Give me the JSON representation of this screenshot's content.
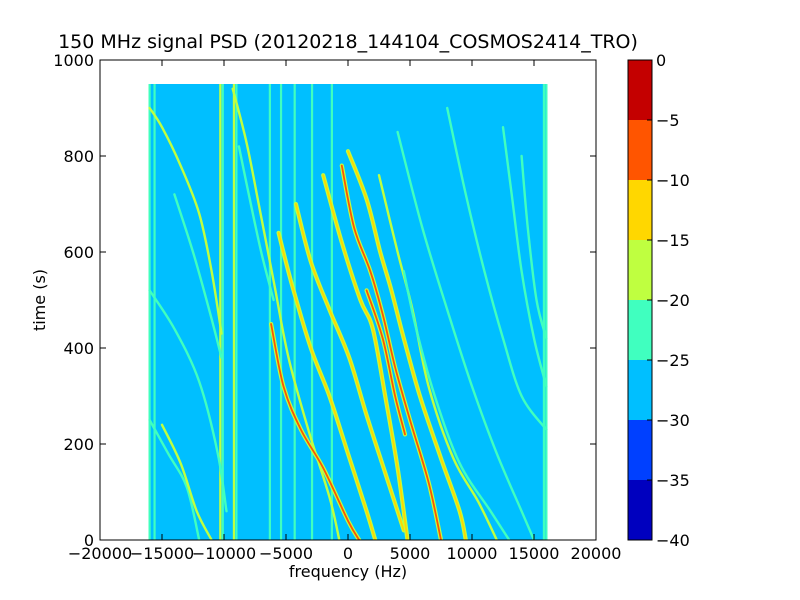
{
  "chart_data": {
    "type": "heatmap",
    "title": "150 MHz signal PSD (20120218_144104_COSMOS2414_TRO)",
    "xlabel": "frequency (Hz)",
    "ylabel": "time (s)",
    "xlim": [
      -20000,
      20000
    ],
    "ylim": [
      0,
      1000
    ],
    "xticks": [
      "−20000",
      "−15000",
      "−10000",
      "−5000",
      "0",
      "5000",
      "10000",
      "15000",
      "20000"
    ],
    "yticks": [
      "0",
      "200",
      "400",
      "600",
      "800",
      "1000"
    ],
    "data_extent": {
      "x": [
        -16000,
        16000
      ],
      "y": [
        0,
        950
      ]
    },
    "background_level": -27.5,
    "colorbar": {
      "min": -40,
      "max": 0,
      "ticks": [
        "0",
        "−5",
        "−10",
        "−15",
        "−20",
        "−25",
        "−30",
        "−35",
        "−40"
      ],
      "levels": [
        {
          "from": -40,
          "to": -35,
          "color": "#0000bf"
        },
        {
          "from": -35,
          "to": -30,
          "color": "#0040ff"
        },
        {
          "from": -30,
          "to": -25,
          "color": "#00bfff"
        },
        {
          "from": -25,
          "to": -20,
          "color": "#40ffbf"
        },
        {
          "from": -20,
          "to": -15,
          "color": "#bfff40"
        },
        {
          "from": -15,
          "to": -10,
          "color": "#ffd700"
        },
        {
          "from": -10,
          "to": -5,
          "color": "#ff5500"
        },
        {
          "from": -5,
          "to": 0,
          "color": "#c40000"
        }
      ]
    },
    "vertical_lines": [
      {
        "x": -16000,
        "level": -22
      },
      {
        "x": -15600,
        "level": -22
      },
      {
        "x": -10300,
        "level": -18
      },
      {
        "x": -10100,
        "level": -22
      },
      {
        "x": -9200,
        "level": -18
      },
      {
        "x": -9000,
        "level": -22
      },
      {
        "x": -6300,
        "level": -22
      },
      {
        "x": -5400,
        "level": -22
      },
      {
        "x": -4300,
        "level": -22
      },
      {
        "x": -2900,
        "level": -22
      },
      {
        "x": -1300,
        "level": -22
      },
      {
        "x": 15800,
        "level": -22
      },
      {
        "x": 16000,
        "level": -22
      }
    ],
    "tracks": [
      {
        "points": [
          [
            -16000,
            900
          ],
          [
            -15000,
            860
          ],
          [
            -13500,
            780
          ],
          [
            -12000,
            680
          ],
          [
            -11000,
            560
          ],
          [
            -10200,
            430
          ]
        ],
        "level": -18
      },
      {
        "points": [
          [
            -16000,
            520
          ],
          [
            -14000,
            440
          ],
          [
            -12000,
            330
          ],
          [
            -10500,
            180
          ],
          [
            -9800,
            60
          ]
        ],
        "level": -22
      },
      {
        "points": [
          [
            -16000,
            250
          ],
          [
            -14500,
            180
          ],
          [
            -13000,
            110
          ],
          [
            -12000,
            0
          ]
        ],
        "level": -22
      },
      {
        "points": [
          [
            -15000,
            240
          ],
          [
            -13500,
            160
          ],
          [
            -12200,
            60
          ],
          [
            -11000,
            0
          ]
        ],
        "level": -18
      },
      {
        "points": [
          [
            -9300,
            940
          ],
          [
            -8200,
            830
          ],
          [
            -7200,
            700
          ],
          [
            -6000,
            540
          ],
          [
            -4800,
            380
          ],
          [
            -3200,
            230
          ],
          [
            -1500,
            90
          ],
          [
            -700,
            0
          ]
        ],
        "level": -18
      },
      {
        "points": [
          [
            -6200,
            450
          ],
          [
            -5200,
            320
          ],
          [
            -3800,
            230
          ],
          [
            -2000,
            150
          ],
          [
            0,
            40
          ],
          [
            900,
            0
          ]
        ],
        "level": -5
      },
      {
        "points": [
          [
            -5600,
            640
          ],
          [
            -4500,
            530
          ],
          [
            -3000,
            400
          ],
          [
            -1500,
            300
          ],
          [
            0,
            180
          ],
          [
            1500,
            60
          ],
          [
            2200,
            0
          ]
        ],
        "level": -12
      },
      {
        "points": [
          [
            -4200,
            700
          ],
          [
            -3000,
            580
          ],
          [
            -1500,
            480
          ],
          [
            100,
            380
          ],
          [
            1500,
            260
          ],
          [
            3000,
            140
          ],
          [
            4500,
            20
          ]
        ],
        "level": -12
      },
      {
        "points": [
          [
            -2000,
            760
          ],
          [
            -500,
            620
          ],
          [
            1000,
            500
          ],
          [
            2000,
            440
          ],
          [
            3000,
            300
          ],
          [
            4000,
            150
          ],
          [
            4800,
            0
          ]
        ],
        "level": -10
      },
      {
        "points": [
          [
            -500,
            780
          ],
          [
            500,
            650
          ],
          [
            1800,
            560
          ],
          [
            2800,
            470
          ],
          [
            3800,
            360
          ],
          [
            5000,
            250
          ],
          [
            6500,
            120
          ],
          [
            7500,
            0
          ]
        ],
        "level": -5
      },
      {
        "points": [
          [
            1500,
            520
          ],
          [
            2800,
            420
          ],
          [
            3800,
            300
          ],
          [
            4600,
            220
          ]
        ],
        "level": -8
      },
      {
        "points": [
          [
            0,
            810
          ],
          [
            1500,
            710
          ],
          [
            2600,
            600
          ],
          [
            3500,
            520
          ],
          [
            4500,
            420
          ],
          [
            5800,
            300
          ],
          [
            7500,
            170
          ],
          [
            9000,
            60
          ],
          [
            9500,
            0
          ]
        ],
        "level": -12
      },
      {
        "points": [
          [
            2500,
            760
          ],
          [
            4000,
            600
          ],
          [
            5200,
            480
          ],
          [
            6500,
            320
          ],
          [
            8500,
            170
          ],
          [
            10500,
            80
          ],
          [
            12000,
            0
          ]
        ],
        "level": -18
      },
      {
        "points": [
          [
            4500,
            560
          ],
          [
            5500,
            440
          ],
          [
            7000,
            300
          ],
          [
            9000,
            160
          ],
          [
            11500,
            60
          ],
          [
            13000,
            0
          ]
        ],
        "level": -22
      },
      {
        "points": [
          [
            4000,
            850
          ],
          [
            6000,
            650
          ],
          [
            8000,
            480
          ],
          [
            10000,
            320
          ],
          [
            12000,
            180
          ],
          [
            14000,
            60
          ],
          [
            15000,
            0
          ]
        ],
        "level": -22
      },
      {
        "points": [
          [
            8000,
            900
          ],
          [
            9500,
            720
          ],
          [
            11000,
            560
          ],
          [
            12500,
            420
          ],
          [
            14000,
            300
          ],
          [
            16000,
            230
          ]
        ],
        "level": -22
      },
      {
        "points": [
          [
            12500,
            860
          ],
          [
            13200,
            720
          ],
          [
            14000,
            560
          ],
          [
            15000,
            420
          ],
          [
            16000,
            320
          ]
        ],
        "level": -22
      },
      {
        "points": [
          [
            14000,
            800
          ],
          [
            14500,
            650
          ],
          [
            15200,
            500
          ],
          [
            16000,
            420
          ]
        ],
        "level": -22
      },
      {
        "points": [
          [
            -14000,
            720
          ],
          [
            -12500,
            600
          ],
          [
            -11200,
            480
          ],
          [
            -10200,
            380
          ]
        ],
        "level": -22
      },
      {
        "points": [
          [
            -8800,
            820
          ],
          [
            -8000,
            720
          ],
          [
            -7000,
            600
          ],
          [
            -6000,
            500
          ]
        ],
        "level": -22
      }
    ]
  }
}
